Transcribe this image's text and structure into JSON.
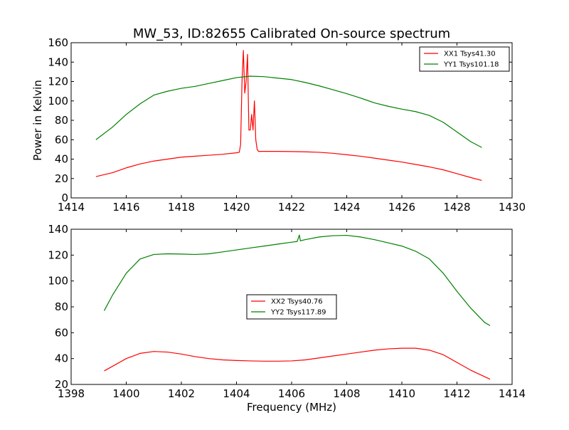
{
  "chart_data": [
    {
      "type": "line",
      "title": "MW_53, ID:82655 Calibrated On-source spectrum",
      "xlabel": "",
      "ylabel": "Power in Kelvin",
      "xlim": [
        1414,
        1430
      ],
      "ylim": [
        0,
        160
      ],
      "xticks": [
        1414,
        1416,
        1418,
        1420,
        1422,
        1424,
        1426,
        1428,
        1430
      ],
      "yticks": [
        0,
        20,
        40,
        60,
        80,
        100,
        120,
        140,
        160
      ],
      "grid": false,
      "legend": "top-right",
      "series": [
        {
          "name": "XX1 Tsys41.30",
          "color": "#ff0000",
          "x": [
            1414.9,
            1415.5,
            1416,
            1416.5,
            1417,
            1417.5,
            1418,
            1418.5,
            1419,
            1419.5,
            1420,
            1420.1,
            1420.15,
            1420.2,
            1420.25,
            1420.3,
            1420.35,
            1420.4,
            1420.45,
            1420.5,
            1420.55,
            1420.6,
            1420.65,
            1420.7,
            1420.75,
            1420.8,
            1420.85,
            1420.9,
            1421,
            1421.5,
            1422,
            1422.5,
            1423,
            1423.5,
            1424,
            1424.5,
            1425,
            1425.5,
            1426,
            1426.5,
            1427,
            1427.5,
            1428,
            1428.5,
            1428.9
          ],
          "values": [
            22,
            26,
            31,
            35,
            38,
            40,
            42,
            43,
            44,
            45,
            46.5,
            47,
            55,
            120,
            152,
            108,
            120,
            148,
            70,
            70,
            86,
            70,
            100,
            60,
            50,
            48,
            48,
            48,
            48,
            48,
            47.8,
            47.5,
            47,
            46,
            44.5,
            43,
            41,
            39,
            37,
            34.5,
            32,
            29,
            25,
            21,
            18
          ]
        },
        {
          "name": "YY1 Tsys101.18",
          "color": "#008000",
          "x": [
            1414.9,
            1415.5,
            1416,
            1416.5,
            1417,
            1417.5,
            1418,
            1418.5,
            1419,
            1419.5,
            1420,
            1420.5,
            1421,
            1421.5,
            1422,
            1422.5,
            1423,
            1423.5,
            1424,
            1424.5,
            1425,
            1425.5,
            1426,
            1426.5,
            1427,
            1427.5,
            1428,
            1428.5,
            1428.9
          ],
          "values": [
            60,
            73,
            86,
            97,
            106,
            110,
            113,
            115,
            118,
            121,
            124,
            125.5,
            125,
            123.5,
            122,
            119,
            115.5,
            111.5,
            107.5,
            103,
            98,
            94.5,
            91.5,
            89,
            85,
            78,
            68,
            58,
            52
          ]
        }
      ]
    },
    {
      "type": "line",
      "title": "",
      "xlabel": "Frequency (MHz)",
      "ylabel": "",
      "xlim": [
        1398,
        1414
      ],
      "ylim": [
        20,
        140
      ],
      "xticks": [
        1398,
        1400,
        1402,
        1404,
        1406,
        1408,
        1410,
        1412,
        1414
      ],
      "yticks": [
        20,
        40,
        60,
        80,
        100,
        120,
        140
      ],
      "grid": false,
      "legend": "center",
      "series": [
        {
          "name": "XX2 Tsys40.76",
          "color": "#ff0000",
          "x": [
            1399.2,
            1399.5,
            1400,
            1400.5,
            1401,
            1401.5,
            1402,
            1402.5,
            1403,
            1403.5,
            1404,
            1404.5,
            1405,
            1405.5,
            1406,
            1406.5,
            1407,
            1407.5,
            1408,
            1408.5,
            1409,
            1409.5,
            1410,
            1410.5,
            1411,
            1411.5,
            1412,
            1412.5,
            1413,
            1413.2
          ],
          "values": [
            30.5,
            34,
            40,
            44,
            45.5,
            45,
            43.5,
            41.5,
            40,
            39,
            38.5,
            38.2,
            38,
            38,
            38.2,
            39,
            40.5,
            42,
            43.5,
            45,
            46.5,
            47.5,
            48,
            48,
            46.5,
            43,
            37,
            31,
            26,
            24
          ]
        },
        {
          "name": "YY2 Tsys117.89",
          "color": "#008000",
          "x": [
            1399.2,
            1399.5,
            1400,
            1400.5,
            1401,
            1401.5,
            1402,
            1402.5,
            1403,
            1403.5,
            1404,
            1404.5,
            1405,
            1405.5,
            1406,
            1406.2,
            1406.28,
            1406.32,
            1406.4,
            1406.5,
            1407,
            1407.5,
            1408,
            1408.5,
            1409,
            1409.5,
            1410,
            1410.5,
            1411,
            1411.5,
            1412,
            1412.5,
            1413,
            1413.2
          ],
          "values": [
            77,
            89,
            106,
            117,
            120.5,
            121,
            120.8,
            120.5,
            121,
            122.5,
            124,
            125.5,
            127,
            128.5,
            130,
            130.5,
            135.5,
            131,
            131.5,
            132,
            134,
            135,
            135.3,
            134,
            132,
            129.5,
            127,
            123,
            117,
            106,
            92,
            79,
            68,
            65.5
          ]
        }
      ]
    }
  ]
}
